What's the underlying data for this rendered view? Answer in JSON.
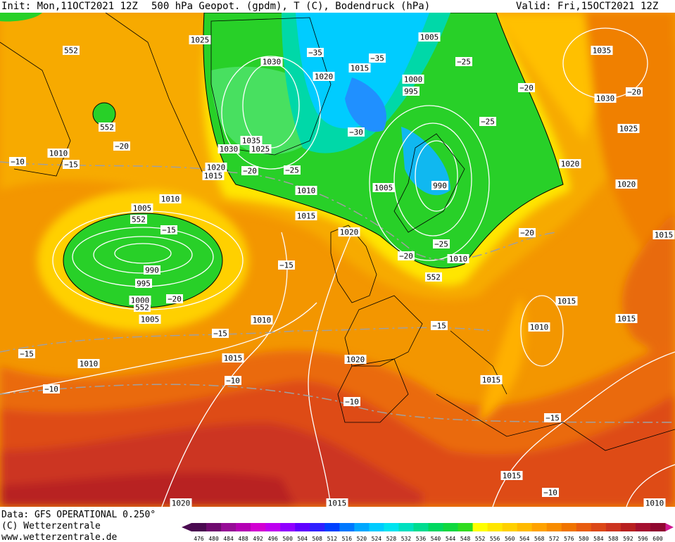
{
  "header": {
    "left": "Init: Mon,11OCT2021 12Z",
    "center": "500 hPa Geopot. (gpdm), T (C), Bodendruck (hPa)",
    "right": "Valid: Fri,15OCT2021 12Z"
  },
  "footer": {
    "line1": "Data: GFS OPERATIONAL 0.250°",
    "line2": "(C) Wetterzentrale",
    "line3": "www.wetterzentrale.de"
  },
  "map_labels": [
    "552",
    "1025",
    "1030",
    "−35",
    "1020",
    "1015",
    "−35",
    "1005",
    "−25",
    "1000",
    "995",
    "−20",
    "1035",
    "−20",
    "1030",
    "1025",
    "552",
    "−20",
    "1010",
    "−10",
    "−15",
    "1035",
    "1030",
    "1025",
    "1020",
    "1015",
    "−20",
    "−25",
    "−30",
    "−25",
    "1020",
    "1010",
    "1005",
    "990",
    "1020",
    "1010",
    "1005",
    "552",
    "−15",
    "1015",
    "1020",
    "−20",
    "1015",
    "−25",
    "−20",
    "1010",
    "−15",
    "990",
    "995",
    "552",
    "−20",
    "1000",
    "552",
    "1015",
    "1005",
    "1010",
    "1015",
    "−15",
    "1010",
    "−15",
    "−15",
    "1015",
    "1010",
    "1020",
    "1015",
    "−10",
    "−10",
    "−10",
    "−15",
    "1015",
    "−10",
    "1020",
    "1015",
    "1010"
  ],
  "colorbar": {
    "values": [
      476,
      480,
      484,
      488,
      492,
      496,
      500,
      504,
      508,
      512,
      516,
      520,
      524,
      528,
      532,
      536,
      540,
      544,
      548,
      552,
      556,
      560,
      564,
      568,
      572,
      576,
      580,
      584,
      588,
      592,
      596,
      600
    ],
    "colors": [
      "#4a0a50",
      "#6e0a6e",
      "#960c96",
      "#b400b4",
      "#d200d2",
      "#be00f0",
      "#9000ff",
      "#6000ff",
      "#3020ff",
      "#0040ff",
      "#0078ff",
      "#00a8ff",
      "#00ccff",
      "#00e4f0",
      "#00e0c0",
      "#00dc90",
      "#00d860",
      "#10d840",
      "#30dc20",
      "#ffff00",
      "#ffe600",
      "#ffd000",
      "#ffba00",
      "#ffa200",
      "#f88c00",
      "#f07400",
      "#e85c10",
      "#dc4818",
      "#cc3420",
      "#b82020",
      "#a41030",
      "#900830"
    ]
  }
}
